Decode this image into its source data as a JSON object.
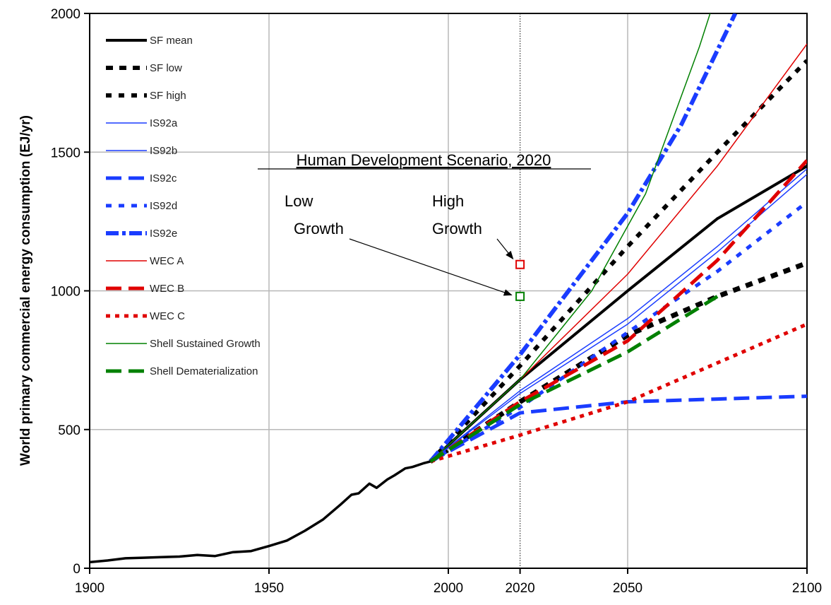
{
  "chart_data": {
    "type": "line",
    "title": "",
    "xlabel": "",
    "ylabel": "World primary commercial energy consumption (EJ/yr)",
    "xlim": [
      1900,
      2100
    ],
    "ylim": [
      0,
      2000
    ],
    "x_ticks": [
      1900,
      1950,
      2000,
      2020,
      2050,
      2100
    ],
    "y_ticks": [
      0,
      500,
      1000,
      1500,
      2000
    ],
    "grid": true,
    "legend_position": "top-left",
    "reference_line": {
      "x": 2020,
      "style": "dotted"
    },
    "annotations": [
      {
        "text": "Human Development Scenario, 2020",
        "underline": true
      },
      {
        "text": "Low Growth",
        "line1": "Low",
        "line2": "Growth",
        "points_to": {
          "x": 2020,
          "y": 980
        }
      },
      {
        "text": "High Growth",
        "line1": "High",
        "line2": "Growth",
        "points_to": {
          "x": 2020,
          "y": 1095
        }
      }
    ],
    "markers": [
      {
        "label": "High Growth",
        "x": 2020,
        "y": 1095,
        "color": "#e00000"
      },
      {
        "label": "Low Growth",
        "x": 2020,
        "y": 980,
        "color": "#008000"
      }
    ],
    "historical": {
      "x": [
        1900,
        1905,
        1910,
        1915,
        1920,
        1925,
        1930,
        1935,
        1940,
        1945,
        1950,
        1955,
        1960,
        1965,
        1970,
        1973,
        1975,
        1978,
        1980,
        1983,
        1985,
        1988,
        1990,
        1993,
        1995
      ],
      "y": [
        22,
        28,
        36,
        38,
        40,
        42,
        48,
        44,
        58,
        62,
        80,
        100,
        135,
        175,
        230,
        265,
        270,
        305,
        290,
        320,
        335,
        360,
        365,
        378,
        385
      ]
    },
    "series": [
      {
        "name": "SF mean",
        "color": "#000000",
        "dash": "solid",
        "width": 4,
        "x": [
          1995,
          2020,
          2050,
          2075,
          2100
        ],
        "y": [
          385,
          680,
          1000,
          1260,
          1450
        ]
      },
      {
        "name": "SF low",
        "color": "#000000",
        "dash": "heavy",
        "width": 7,
        "x": [
          1995,
          2020,
          2050,
          2075,
          2100
        ],
        "y": [
          385,
          600,
          840,
          980,
          1100
        ]
      },
      {
        "name": "SF high",
        "color": "#000000",
        "dash": "short",
        "width": 6,
        "x": [
          1995,
          2020,
          2050,
          2075,
          2100
        ],
        "y": [
          385,
          730,
          1160,
          1500,
          1830
        ]
      },
      {
        "name": "IS92a",
        "color": "#1a3cff",
        "dash": "solid",
        "width": 1.5,
        "x": [
          1995,
          2020,
          2050,
          2075,
          2100
        ],
        "y": [
          385,
          640,
          900,
          1160,
          1440
        ]
      },
      {
        "name": "IS92b",
        "color": "#1a3cff",
        "dash": "solid",
        "width": 1.5,
        "x": [
          1995,
          2020,
          2050,
          2075,
          2100
        ],
        "y": [
          385,
          630,
          880,
          1140,
          1420
        ]
      },
      {
        "name": "IS92c",
        "color": "#1a3cff",
        "dash": "long",
        "width": 5,
        "x": [
          1995,
          2020,
          2050,
          2075,
          2100
        ],
        "y": [
          385,
          560,
          600,
          610,
          620
        ]
      },
      {
        "name": "IS92d",
        "color": "#1a3cff",
        "dash": "short",
        "width": 5,
        "x": [
          1995,
          2020,
          2050,
          2075,
          2100
        ],
        "y": [
          385,
          580,
          850,
          1070,
          1320
        ]
      },
      {
        "name": "IS92e",
        "color": "#1a3cff",
        "dash": "dashdot",
        "width": 6,
        "x": [
          1995,
          2020,
          2050,
          2065,
          2080
        ],
        "y": [
          385,
          770,
          1280,
          1600,
          2000
        ]
      },
      {
        "name": "WEC A",
        "color": "#e00000",
        "dash": "solid",
        "width": 1.5,
        "x": [
          1995,
          2020,
          2050,
          2075,
          2100
        ],
        "y": [
          385,
          680,
          1060,
          1450,
          1890
        ]
      },
      {
        "name": "WEC B",
        "color": "#e00000",
        "dash": "long",
        "width": 5,
        "x": [
          1995,
          2020,
          2050,
          2075,
          2100
        ],
        "y": [
          385,
          600,
          820,
          1110,
          1470
        ]
      },
      {
        "name": "WEC C",
        "color": "#e00000",
        "dash": "dot",
        "width": 5,
        "x": [
          1995,
          2020,
          2050,
          2075,
          2100
        ],
        "y": [
          385,
          480,
          600,
          740,
          880
        ]
      },
      {
        "name": "Shell Sustained Growth",
        "color": "#008000",
        "dash": "solid",
        "width": 1.5,
        "x": [
          1995,
          2020,
          2040,
          2055,
          2070,
          2073
        ],
        "y": [
          385,
          680,
          1000,
          1350,
          1880,
          2000
        ]
      },
      {
        "name": "Shell Dematerialization",
        "color": "#008000",
        "dash": "long",
        "width": 5,
        "x": [
          1995,
          2020,
          2050,
          2075
        ],
        "y": [
          385,
          590,
          780,
          980
        ]
      }
    ]
  }
}
